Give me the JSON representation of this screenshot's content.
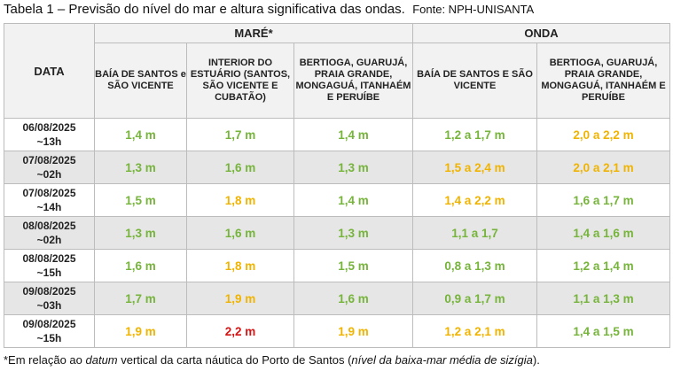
{
  "caption": {
    "title": "Tabela 1 – Previsão do nível do mar e altura significativa das ondas.",
    "source": "Fonte: NPH-UNISANTA"
  },
  "table": {
    "date_header": "DATA",
    "group_mare": "MARÉ*",
    "group_onda": "ONDA",
    "col_headers": [
      "BAÍA DE SANTOS e SÃO VICENTE",
      "INTERIOR DO ESTUÁRIO (SANTOS, SÃO VICENTE E CUBATÃO)",
      "BERTIOGA, GUARUJÁ, PRAIA GRANDE, MONGAGUÁ, ITANHAÉM E PERUÍBE",
      "BAÍA DE SANTOS E SÃO VICENTE",
      "BERTIOGA, GUARUJÁ, PRAIA GRANDE, MONGAGUÁ, ITANHAÉM E PERUÍBE"
    ],
    "rows": [
      {
        "date": "06/08/2025",
        "time": "~13h",
        "cells": [
          {
            "v": "1,4 m",
            "c": "green"
          },
          {
            "v": "1,7 m",
            "c": "green"
          },
          {
            "v": "1,4 m",
            "c": "green"
          },
          {
            "v": "1,2 a 1,7 m",
            "c": "green"
          },
          {
            "v": "2,0 a 2,2 m",
            "c": "yellow"
          }
        ]
      },
      {
        "date": "07/08/2025",
        "time": "~02h",
        "cells": [
          {
            "v": "1,3 m",
            "c": "green"
          },
          {
            "v": "1,6 m",
            "c": "green"
          },
          {
            "v": "1,3 m",
            "c": "green"
          },
          {
            "v": "1,5 a 2,4 m",
            "c": "yellow"
          },
          {
            "v": "2,0 a 2,1 m",
            "c": "yellow"
          }
        ]
      },
      {
        "date": "07/08/2025",
        "time": "~14h",
        "cells": [
          {
            "v": "1,5 m",
            "c": "green"
          },
          {
            "v": "1,8 m",
            "c": "yellow"
          },
          {
            "v": "1,4 m",
            "c": "green"
          },
          {
            "v": "1,4 a 2,2 m",
            "c": "yellow"
          },
          {
            "v": "1,6 a 1,7 m",
            "c": "green"
          }
        ]
      },
      {
        "date": "08/08/2025",
        "time": "~02h",
        "cells": [
          {
            "v": "1,3 m",
            "c": "green"
          },
          {
            "v": "1,6 m",
            "c": "green"
          },
          {
            "v": "1,3 m",
            "c": "green"
          },
          {
            "v": "1,1 a 1,7",
            "c": "green"
          },
          {
            "v": "1,4 a 1,6 m",
            "c": "green"
          }
        ]
      },
      {
        "date": "08/08/2025",
        "time": "~15h",
        "cells": [
          {
            "v": "1,6 m",
            "c": "green"
          },
          {
            "v": "1,8 m",
            "c": "yellow"
          },
          {
            "v": "1,5 m",
            "c": "green"
          },
          {
            "v": "0,8 a 1,3 m",
            "c": "green"
          },
          {
            "v": "1,2 a 1,4 m",
            "c": "green"
          }
        ]
      },
      {
        "date": "09/08/2025",
        "time": "~03h",
        "cells": [
          {
            "v": "1,7 m",
            "c": "green"
          },
          {
            "v": "1,9 m",
            "c": "yellow"
          },
          {
            "v": "1,6 m",
            "c": "green"
          },
          {
            "v": "0,9 a 1,7 m",
            "c": "green"
          },
          {
            "v": "1,1 a 1,3 m",
            "c": "green"
          }
        ]
      },
      {
        "date": "09/08/2025",
        "time": "~15h",
        "cells": [
          {
            "v": "1,9 m",
            "c": "yellow"
          },
          {
            "v": "2,2 m",
            "c": "red"
          },
          {
            "v": "1,9 m",
            "c": "yellow"
          },
          {
            "v": "1,2 a 2,1 m",
            "c": "yellow"
          },
          {
            "v": "1,4 a 1,5 m",
            "c": "green"
          }
        ]
      }
    ]
  },
  "colors": {
    "green": "#76b43b",
    "yellow": "#f0b400",
    "red": "#d51414"
  },
  "footnote": {
    "a": "*Em relação ao ",
    "b": "datum",
    "c": " vertical da carta náutica do Porto de Santos (",
    "d": "nível da baixa-mar média de sizígia",
    "e": ")."
  }
}
